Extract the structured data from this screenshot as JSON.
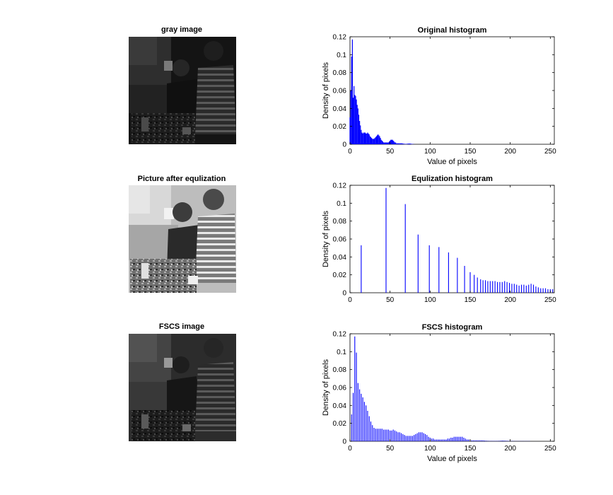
{
  "figure": {
    "panels": [
      {
        "title": "gray image"
      },
      {
        "title": "Picture after equlization"
      },
      {
        "title": "FSCS image"
      }
    ]
  },
  "chart_data": [
    {
      "type": "bar",
      "title": "Original histogram",
      "xlabel": "Value of pixels",
      "ylabel": "Density of pixels",
      "xlim": [
        0,
        255
      ],
      "ylim": [
        0,
        0.12
      ],
      "xticks": [
        0,
        50,
        100,
        150,
        200,
        250
      ],
      "yticks": [
        0,
        0.02,
        0.04,
        0.06,
        0.08,
        0.1,
        0.12
      ],
      "ytick_labels": [
        "0",
        "0.02",
        "0.04",
        "0.06",
        "0.08",
        "0.1",
        "0.12"
      ],
      "color": "#0000ff",
      "x": [
        0,
        1,
        2,
        3,
        4,
        5,
        6,
        7,
        8,
        9,
        10,
        11,
        12,
        13,
        14,
        15,
        16,
        17,
        18,
        19,
        20,
        21,
        22,
        23,
        24,
        25,
        26,
        27,
        28,
        29,
        30,
        31,
        32,
        33,
        34,
        35,
        36,
        37,
        38,
        39,
        40,
        41,
        42,
        43,
        44,
        45,
        46,
        47,
        48,
        49,
        50,
        51,
        52,
        53,
        54,
        55,
        56,
        57,
        58,
        59,
        60,
        61,
        62,
        63,
        64,
        65,
        66,
        67,
        68,
        69,
        70,
        71,
        72,
        73,
        74,
        75,
        76,
        77,
        78,
        79,
        80
      ],
      "values": [
        0.03,
        0.06,
        0.098,
        0.117,
        0.052,
        0.065,
        0.055,
        0.054,
        0.05,
        0.044,
        0.04,
        0.033,
        0.026,
        0.021,
        0.016,
        0.013,
        0.012,
        0.013,
        0.013,
        0.013,
        0.012,
        0.012,
        0.013,
        0.012,
        0.011,
        0.009,
        0.008,
        0.007,
        0.006,
        0.006,
        0.006,
        0.007,
        0.008,
        0.009,
        0.01,
        0.011,
        0.01,
        0.009,
        0.007,
        0.005,
        0.004,
        0.003,
        0.002,
        0.002,
        0.002,
        0.002,
        0.002,
        0.002,
        0.002,
        0.003,
        0.004,
        0.005,
        0.005,
        0.005,
        0.004,
        0.003,
        0.002,
        0.002,
        0.001,
        0.001,
        0.001,
        0.001,
        0.001,
        0.001,
        0.001,
        0.001,
        0.0008,
        0.0006,
        0.0005,
        0.0004,
        0.0004,
        0.0005,
        0.0006,
        0.0007,
        0.0008,
        0.0007,
        0.0006,
        0.0004,
        0.0003,
        0.0002,
        0.0001
      ]
    },
    {
      "type": "bar",
      "title": "Equlization histogram",
      "xlabel": "",
      "ylabel": "Density of pixels",
      "xlim": [
        0,
        255
      ],
      "ylim": [
        0,
        0.12
      ],
      "xticks": [
        0,
        50,
        100,
        150,
        200,
        250
      ],
      "yticks": [
        0,
        0.02,
        0.04,
        0.06,
        0.08,
        0.1,
        0.12
      ],
      "ytick_labels": [
        "0",
        "0.02",
        "0.04",
        "0.06",
        "0.08",
        "0.1",
        "0.12"
      ],
      "color": "#0000ff",
      "x": [
        14,
        45,
        69,
        85,
        99,
        111,
        123,
        134,
        143,
        150,
        155,
        159,
        163,
        166,
        169,
        172,
        175,
        178,
        181,
        184,
        187,
        190,
        193,
        196,
        199,
        202,
        205,
        208,
        211,
        214,
        217,
        220,
        223,
        226,
        229,
        232,
        235,
        238,
        241,
        244,
        247,
        250,
        253
      ],
      "values": [
        0.053,
        0.117,
        0.099,
        0.065,
        0.053,
        0.051,
        0.045,
        0.039,
        0.03,
        0.023,
        0.02,
        0.017,
        0.015,
        0.014,
        0.014,
        0.013,
        0.013,
        0.013,
        0.013,
        0.012,
        0.012,
        0.012,
        0.013,
        0.012,
        0.011,
        0.01,
        0.01,
        0.009,
        0.008,
        0.009,
        0.009,
        0.008,
        0.009,
        0.01,
        0.009,
        0.007,
        0.006,
        0.005,
        0.005,
        0.005,
        0.004,
        0.004,
        0.004
      ]
    },
    {
      "type": "bar",
      "title": "FSCS histogram",
      "xlabel": "Value of pixels",
      "ylabel": "Density of pixels",
      "xlim": [
        0,
        255
      ],
      "ylim": [
        0,
        0.12
      ],
      "xticks": [
        0,
        50,
        100,
        150,
        200,
        250
      ],
      "yticks": [
        0,
        0.02,
        0.04,
        0.06,
        0.08,
        0.1,
        0.12
      ],
      "ytick_labels": [
        "0",
        "0.02",
        "0.04",
        "0.06",
        "0.08",
        "0.1",
        "0.12"
      ],
      "color": "#0000ff",
      "x": [
        2,
        4,
        6,
        8,
        10,
        12,
        14,
        16,
        18,
        20,
        22,
        24,
        26,
        28,
        30,
        32,
        34,
        36,
        38,
        40,
        42,
        44,
        46,
        48,
        50,
        52,
        54,
        56,
        58,
        60,
        62,
        64,
        66,
        68,
        70,
        72,
        74,
        76,
        78,
        80,
        82,
        84,
        86,
        88,
        90,
        92,
        94,
        96,
        98,
        100,
        102,
        104,
        106,
        108,
        110,
        112,
        114,
        116,
        118,
        120,
        122,
        124,
        126,
        128,
        130,
        132,
        134,
        136,
        138,
        140,
        142,
        144,
        146,
        148,
        150,
        152,
        154,
        156,
        158,
        160,
        162,
        164,
        166,
        168,
        170,
        172,
        174,
        176,
        178,
        180,
        182,
        184,
        186,
        188,
        190,
        192,
        194,
        196,
        198,
        200,
        202,
        204,
        206,
        208,
        210,
        212,
        214,
        216,
        218,
        220,
        222,
        224
      ],
      "values": [
        0.03,
        0.054,
        0.117,
        0.099,
        0.065,
        0.058,
        0.053,
        0.049,
        0.044,
        0.04,
        0.034,
        0.028,
        0.022,
        0.018,
        0.015,
        0.014,
        0.014,
        0.014,
        0.014,
        0.014,
        0.013,
        0.013,
        0.013,
        0.013,
        0.012,
        0.012,
        0.013,
        0.012,
        0.011,
        0.01,
        0.01,
        0.009,
        0.008,
        0.007,
        0.006,
        0.006,
        0.006,
        0.006,
        0.006,
        0.007,
        0.008,
        0.009,
        0.01,
        0.01,
        0.01,
        0.009,
        0.008,
        0.007,
        0.005,
        0.004,
        0.003,
        0.003,
        0.002,
        0.002,
        0.002,
        0.002,
        0.002,
        0.002,
        0.002,
        0.002,
        0.003,
        0.003,
        0.004,
        0.004,
        0.005,
        0.005,
        0.005,
        0.005,
        0.005,
        0.005,
        0.004,
        0.003,
        0.002,
        0.002,
        0.001,
        0.001,
        0.001,
        0.001,
        0.001,
        0.001,
        0.001,
        0.001,
        0.001,
        0.0008,
        0.0006,
        0.0005,
        0.0004,
        0.0004,
        0.0004,
        0.0004,
        0.0004,
        0.0004,
        0.0005,
        0.0006,
        0.0008,
        0.0007,
        0.0006,
        0.0005,
        0.0004,
        0.0003,
        0.0003,
        0.0003,
        0.0002,
        0.0002,
        0.0002,
        0.0002,
        0.0002,
        0.0002,
        0.0002,
        0.0002,
        0.0002,
        0.0002
      ]
    }
  ]
}
